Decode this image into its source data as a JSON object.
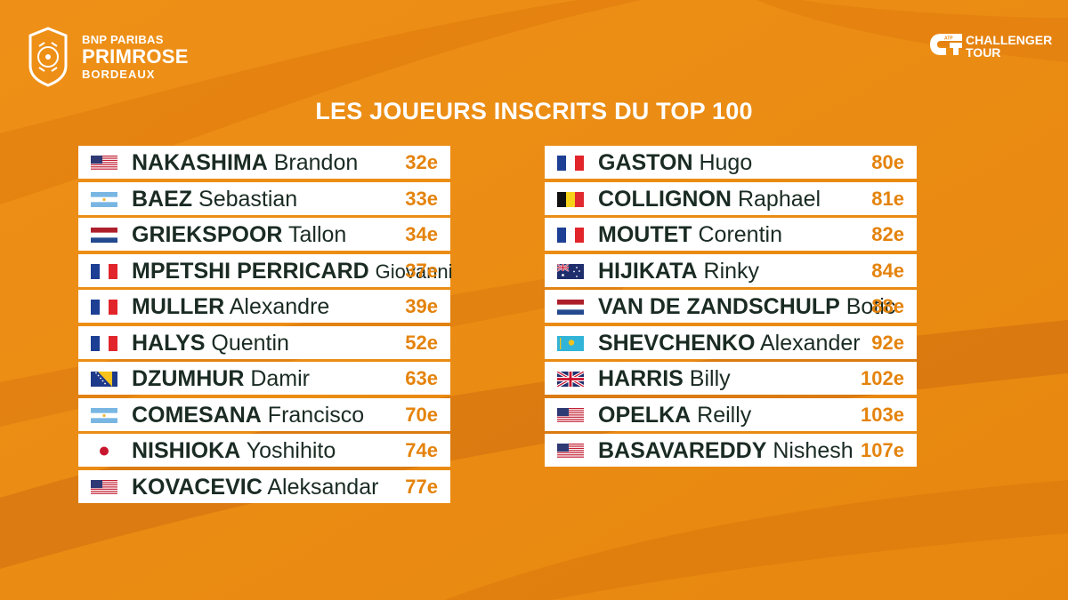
{
  "brand": {
    "line1": "BNP PARIBAS",
    "line2": "PRIMROSE",
    "line3": "BORDEAUX"
  },
  "partner": {
    "line1": "CHALLENGER",
    "line2": "TOUR",
    "mark": "ATP"
  },
  "title": "LES JOUEURS INSCRITS DU TOP 100",
  "colors": {
    "background": "#ea8a12",
    "rank": "#e4830c",
    "name": "#1a2b23"
  },
  "left_players": [
    {
      "last": "NAKASHIMA",
      "first": "Brandon",
      "rank": "32e",
      "flag": "usa-flag-icon"
    },
    {
      "last": "BAEZ",
      "first": "Sebastian",
      "rank": "33e",
      "flag": "argentina-flag-icon"
    },
    {
      "last": "GRIEKSPOOR",
      "first": "Tallon",
      "rank": "34e",
      "flag": "netherlands-flag-icon"
    },
    {
      "last": "MPETSHI PERRICARD",
      "first": "Giovanni",
      "rank": "37e",
      "flag": "france-flag-icon"
    },
    {
      "last": "MULLER",
      "first": "Alexandre",
      "rank": "39e",
      "flag": "france-flag-icon"
    },
    {
      "last": "HALYS",
      "first": "Quentin",
      "rank": "52e",
      "flag": "france-flag-icon"
    },
    {
      "last": "DZUMHUR",
      "first": "Damir",
      "rank": "63e",
      "flag": "bosnia-flag-icon"
    },
    {
      "last": "COMESANA",
      "first": "Francisco",
      "rank": "70e",
      "flag": "argentina-flag-icon"
    },
    {
      "last": "NISHIOKA",
      "first": "Yoshihito",
      "rank": "74e",
      "flag": "japan-flag-icon"
    },
    {
      "last": "KOVACEVIC",
      "first": "Aleksandar",
      "rank": "77e",
      "flag": "usa-flag-icon"
    }
  ],
  "right_players": [
    {
      "last": "GASTON",
      "first": "Hugo",
      "rank": "80e",
      "flag": "france-flag-icon"
    },
    {
      "last": "COLLIGNON",
      "first": "Raphael",
      "rank": "81e",
      "flag": "belgium-flag-icon"
    },
    {
      "last": "MOUTET",
      "first": "Corentin",
      "rank": "82e",
      "flag": "france-flag-icon"
    },
    {
      "last": "HIJIKATA",
      "first": "Rinky",
      "rank": "84e",
      "flag": "australia-flag-icon"
    },
    {
      "last": "VAN DE ZANDSCHULP",
      "first": "Botic",
      "rank": "88e",
      "flag": "netherlands-flag-icon"
    },
    {
      "last": "SHEVCHENKO",
      "first": "Alexander",
      "rank": "92e",
      "flag": "kazakhstan-flag-icon"
    },
    {
      "last": "HARRIS",
      "first": "Billy",
      "rank": "102e",
      "flag": "uk-flag-icon"
    },
    {
      "last": "OPELKA",
      "first": "Reilly",
      "rank": "103e",
      "flag": "usa-flag-icon"
    },
    {
      "last": "BASAVAREDDY",
      "first": "Nishesh",
      "rank": "107e",
      "flag": "usa-flag-icon"
    }
  ]
}
